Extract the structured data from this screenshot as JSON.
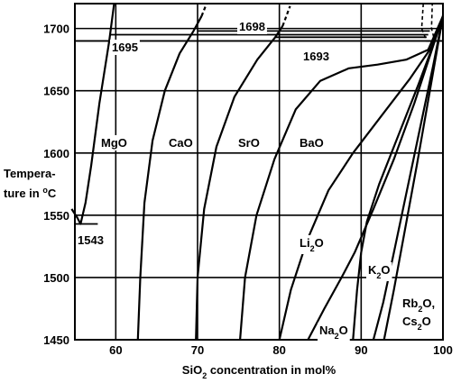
{
  "chart_data": {
    "type": "line",
    "title": "",
    "xlabel": {
      "pre": "SiO",
      "sub": "2",
      "post": " concentration in mol%"
    },
    "ylabel": {
      "line1": "Tempera-",
      "line2_pre": "ture in ",
      "line2_sup": "o",
      "line2_post": "C"
    },
    "xlim": [
      55,
      100
    ],
    "ylim": [
      1450,
      1720
    ],
    "xticks": [
      60,
      70,
      80,
      90,
      100
    ],
    "yticks": [
      1450,
      1500,
      1550,
      1600,
      1650,
      1700
    ],
    "grid": true,
    "series": [
      {
        "name": "MgO",
        "label": {
          "pre": "MgO",
          "sub": "",
          "post": ""
        },
        "points": [
          [
            54.6,
            1555
          ],
          [
            55.3,
            1548
          ],
          [
            55.7,
            1543
          ],
          [
            56.3,
            1560
          ],
          [
            57.0,
            1590
          ],
          [
            58.0,
            1640
          ],
          [
            59.2,
            1690
          ],
          [
            59.8,
            1720
          ]
        ]
      },
      {
        "name": "CaO",
        "label": {
          "pre": "CaO",
          "sub": "",
          "post": ""
        },
        "points": [
          [
            62.7,
            1450
          ],
          [
            63.0,
            1500
          ],
          [
            63.5,
            1560
          ],
          [
            64.5,
            1610
          ],
          [
            66.0,
            1650
          ],
          [
            67.8,
            1680
          ],
          [
            69.5,
            1698
          ],
          [
            70.5,
            1710
          ]
        ],
        "dashed": [
          [
            70.5,
            1710
          ],
          [
            71.1,
            1720
          ]
        ]
      },
      {
        "name": "SrO",
        "label": {
          "pre": "SrO",
          "sub": "",
          "post": ""
        },
        "points": [
          [
            69.8,
            1450
          ],
          [
            70.0,
            1500
          ],
          [
            70.8,
            1555
          ],
          [
            72.3,
            1605
          ],
          [
            74.5,
            1645
          ],
          [
            77.3,
            1675
          ],
          [
            79.5,
            1693
          ],
          [
            80.4,
            1702
          ]
        ],
        "dashed": [
          [
            80.4,
            1702
          ],
          [
            81.3,
            1718
          ]
        ]
      },
      {
        "name": "BaO",
        "label": {
          "pre": "BaO",
          "sub": "",
          "post": ""
        },
        "points": [
          [
            75.2,
            1450
          ],
          [
            75.8,
            1500
          ],
          [
            77.2,
            1550
          ],
          [
            79.4,
            1595
          ],
          [
            82.0,
            1635
          ],
          [
            85.0,
            1658
          ],
          [
            88.5,
            1668
          ],
          [
            92.0,
            1671
          ],
          [
            95.5,
            1675
          ],
          [
            98.2,
            1683
          ],
          [
            100,
            1710
          ]
        ]
      },
      {
        "name": "Li2O",
        "label": {
          "pre": "Li",
          "sub": "2",
          "post": "O"
        },
        "points": [
          [
            80.0,
            1450
          ],
          [
            81.4,
            1490
          ],
          [
            83.4,
            1530
          ],
          [
            86.0,
            1570
          ],
          [
            89.0,
            1600
          ],
          [
            92.5,
            1630
          ],
          [
            96.0,
            1660
          ],
          [
            98.6,
            1685
          ],
          [
            100,
            1710
          ]
        ]
      },
      {
        "name": "Na2O",
        "label": {
          "pre": "Na",
          "sub": "2",
          "post": "O"
        },
        "points": [
          [
            83.5,
            1450
          ],
          [
            85.5,
            1475
          ],
          [
            87.6,
            1500
          ],
          [
            89.2,
            1520
          ],
          [
            91.5,
            1555
          ],
          [
            94.0,
            1595
          ],
          [
            96.5,
            1640
          ],
          [
            98.5,
            1680
          ],
          [
            100,
            1710
          ]
        ]
      },
      {
        "name": "K2O",
        "label": {
          "pre": "K",
          "sub": "2",
          "post": "O"
        },
        "points": [
          [
            89.0,
            1450
          ],
          [
            89.5,
            1490
          ],
          [
            90.0,
            1520
          ],
          [
            90.7,
            1545
          ],
          [
            92.2,
            1575
          ],
          [
            94.6,
            1615
          ],
          [
            97.0,
            1655
          ],
          [
            99.0,
            1690
          ],
          [
            100,
            1710
          ]
        ]
      },
      {
        "name": "Rb2O",
        "label": {
          "pre": "Rb",
          "sub": "2",
          "post": "O,"
        },
        "points": [
          [
            91.5,
            1450
          ],
          [
            92.7,
            1480
          ],
          [
            94.0,
            1520
          ],
          [
            95.6,
            1570
          ],
          [
            97.2,
            1620
          ],
          [
            98.8,
            1670
          ],
          [
            100,
            1710
          ]
        ]
      },
      {
        "name": "Cs2O",
        "label": {
          "pre": "Cs",
          "sub": "2",
          "post": "O"
        },
        "points": [
          [
            92.8,
            1450
          ],
          [
            94.0,
            1490
          ],
          [
            95.4,
            1540
          ],
          [
            96.8,
            1590
          ],
          [
            98.4,
            1650
          ],
          [
            100,
            1710
          ]
        ]
      }
    ],
    "liquid_steep": [
      [
        [
          97.6,
          1720
        ],
        [
          97.4,
          1700
        ],
        [
          98.0,
          1690
        ],
        [
          99.0,
          1690
        ],
        [
          98.6,
          1700
        ],
        [
          98.7,
          1720
        ]
      ]
    ],
    "horizontal_lines": [
      {
        "y": 1698,
        "x": [
          70.0,
          98.4
        ],
        "label": "1698",
        "label_x": 86
      },
      {
        "y": 1695,
        "x": [
          59.2,
          98.2
        ],
        "label": "1695",
        "label_x": 61.5
      },
      {
        "y": 1693,
        "x": [
          79.5,
          98.0
        ],
        "label": "1693",
        "label_x": 84.5
      },
      {
        "y": 1543,
        "x": [
          55.0,
          57.8
        ],
        "label": "1543",
        "label_x": 56.0
      },
      {
        "y": 1690,
        "x": [
          55.0,
          100
        ],
        "label": "",
        "label_x": 0
      }
    ],
    "annotations": {
      "t1695": "1695",
      "t1698": "1698",
      "t1693": "1693",
      "t1543": "1543"
    }
  }
}
